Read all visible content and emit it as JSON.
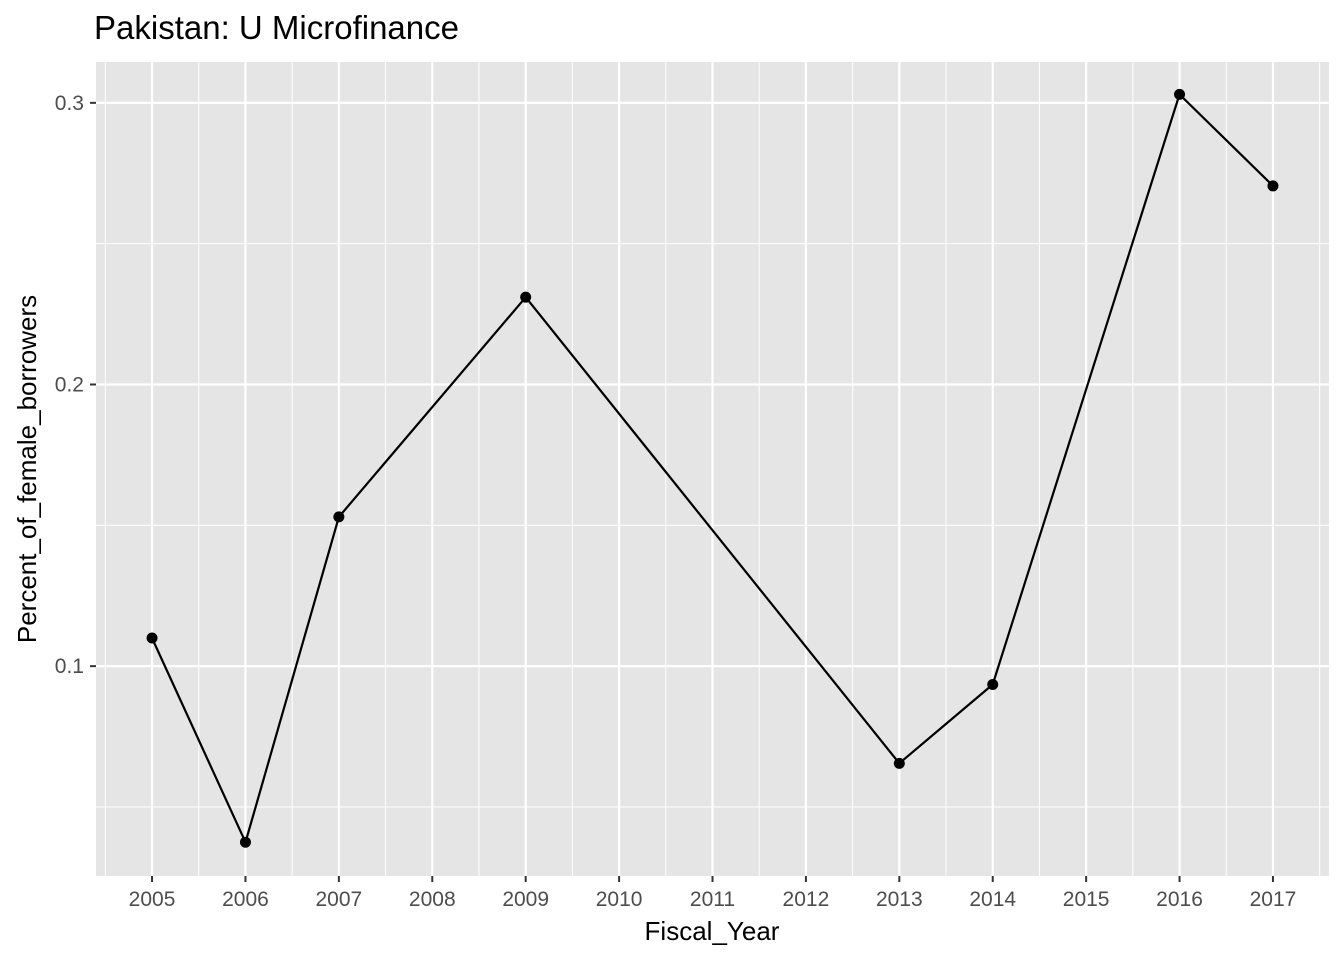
{
  "chart_data": {
    "type": "line",
    "title": "Pakistan:  U Microfinance",
    "xlabel": "Fiscal_Year",
    "ylabel": "Percent_of_female_borrowers",
    "x_ticks": [
      "2005",
      "2006",
      "2007",
      "2008",
      "2009",
      "2010",
      "2011",
      "2012",
      "2013",
      "2014",
      "2015",
      "2016",
      "2017"
    ],
    "y_ticks": [
      "0.1",
      "0.2",
      "0.3"
    ],
    "xlim": [
      2004.4,
      2017.6
    ],
    "ylim": [
      0.0255,
      0.3145
    ],
    "grid": true,
    "series": [
      {
        "x": [
          2005,
          2006,
          2007,
          2009,
          2013,
          2014,
          2016,
          2017
        ],
        "y": [
          0.11,
          0.0375,
          0.153,
          0.231,
          0.0655,
          0.0935,
          0.303,
          0.2705
        ]
      }
    ],
    "colors": {
      "panel": "#e5e5e5",
      "grid": "#ffffff",
      "line": "#000000",
      "point": "#000000",
      "tick_text": "#4d4d4d"
    }
  }
}
